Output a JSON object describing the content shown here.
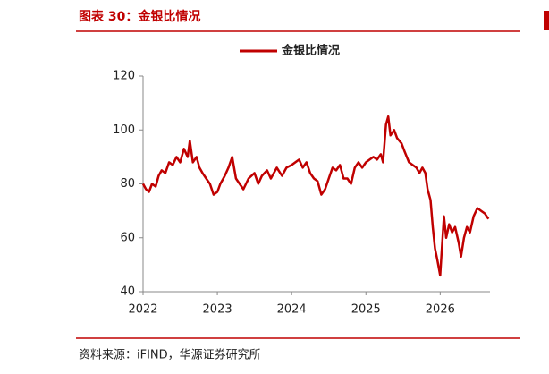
{
  "chart_data": {
    "type": "line",
    "title": "图表 30：金银比情况",
    "source": "资料来源：iFIND，华源证券研究所",
    "x": [
      2022.0,
      2022.04,
      2022.08,
      2022.12,
      2022.17,
      2022.21,
      2022.25,
      2022.3,
      2022.35,
      2022.4,
      2022.45,
      2022.5,
      2022.55,
      2022.6,
      2022.63,
      2022.67,
      2022.72,
      2022.76,
      2022.8,
      2022.85,
      2022.9,
      2022.95,
      2023.0,
      2023.04,
      2023.1,
      2023.15,
      2023.2,
      2023.25,
      2023.3,
      2023.35,
      2023.42,
      2023.5,
      2023.55,
      2023.6,
      2023.67,
      2023.72,
      2023.8,
      2023.87,
      2023.93,
      2024.0,
      2024.05,
      2024.1,
      2024.15,
      2024.2,
      2024.25,
      2024.3,
      2024.35,
      2024.4,
      2024.45,
      2024.5,
      2024.55,
      2024.6,
      2024.65,
      2024.7,
      2024.75,
      2024.8,
      2024.85,
      2024.9,
      2024.95,
      2025.0,
      2025.05,
      2025.1,
      2025.15,
      2025.2,
      2025.23,
      2025.27,
      2025.3,
      2025.33,
      2025.38,
      2025.42,
      2025.48,
      2025.52,
      2025.58,
      2025.63,
      2025.68,
      2025.72,
      2025.76,
      2025.8,
      2025.83,
      2025.87,
      2025.9,
      2025.93,
      2025.96,
      2026.0,
      2026.02,
      2026.05,
      2026.08,
      2026.12,
      2026.16,
      2026.2,
      2026.25,
      2026.28,
      2026.32,
      2026.36,
      2026.4,
      2026.45,
      2026.5,
      2026.55,
      2026.6,
      2026.65
    ],
    "series": [
      {
        "name": "金银比情况",
        "color": "#c00000",
        "values": [
          80,
          78,
          77,
          80,
          79,
          83,
          85,
          84,
          88,
          87,
          90,
          88,
          93,
          90,
          96,
          88,
          90,
          86,
          84,
          82,
          80,
          76,
          77,
          80,
          83,
          86,
          90,
          82,
          80,
          78,
          82,
          84,
          80,
          83,
          85,
          82,
          86,
          83,
          86,
          87,
          88,
          89,
          86,
          88,
          84,
          82,
          81,
          76,
          78,
          82,
          86,
          85,
          87,
          82,
          82,
          80,
          86,
          88,
          86,
          88,
          89,
          90,
          89,
          91,
          88,
          102,
          105,
          98,
          100,
          97,
          95,
          92,
          88,
          87,
          86,
          84,
          86,
          84,
          78,
          74,
          64,
          56,
          52,
          46,
          55,
          68,
          60,
          65,
          62,
          64,
          58,
          53,
          60,
          64,
          62,
          68,
          71,
          70,
          69,
          67
        ]
      }
    ],
    "xlim": [
      2022,
      2026.67
    ],
    "xticks": [
      2022,
      2023,
      2024,
      2025,
      2026
    ],
    "ylim": [
      40,
      120
    ],
    "yticks": [
      40,
      60,
      80,
      100,
      120
    ],
    "grid": false
  }
}
